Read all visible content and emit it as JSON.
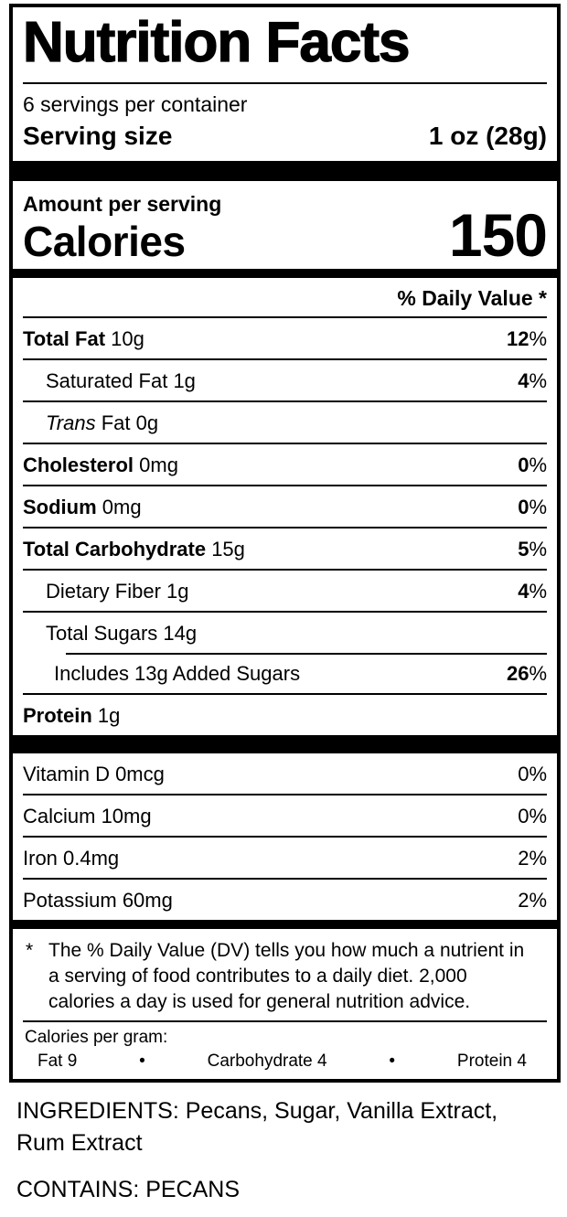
{
  "label": {
    "title": "Nutrition Facts",
    "servings_per_container": "6 servings per container",
    "serving_size": {
      "label": "Serving size",
      "value": "1 oz (28g)"
    },
    "amount_per_serving": "Amount per serving",
    "calories": {
      "label": "Calories",
      "value": "150"
    },
    "daily_value_header": "% Daily Value *",
    "nutrients": [
      {
        "name": "Total Fat",
        "amount": "10g",
        "dv": "12",
        "percent": "%"
      },
      {
        "name": "Saturated Fat",
        "amount": "1g",
        "dv": "4",
        "percent": "%"
      },
      {
        "name_italic": "Trans",
        "name": "Fat",
        "amount": "0g"
      },
      {
        "name": "Cholesterol",
        "amount": "0mg",
        "dv": "0",
        "percent": "%"
      },
      {
        "name": "Sodium",
        "amount": "0mg",
        "dv": "0",
        "percent": "%"
      },
      {
        "name": "Total Carbohydrate",
        "amount": "15g",
        "dv": "5",
        "percent": "%"
      },
      {
        "name": "Dietary Fiber",
        "amount": "1g",
        "dv": "4",
        "percent": "%"
      },
      {
        "name": "Total Sugars",
        "amount": "14g"
      },
      {
        "name": "Includes 13g Added Sugars",
        "dv": "26",
        "percent": "%"
      },
      {
        "name": "Protein",
        "amount": "1g"
      }
    ],
    "vitamins": [
      {
        "text": "Vitamin D 0mcg",
        "dv": "0",
        "percent": "%"
      },
      {
        "text": "Calcium 10mg",
        "dv": "0",
        "percent": "%"
      },
      {
        "text": "Iron 0.4mg",
        "dv": "2",
        "percent": "%"
      },
      {
        "text": "Potassium 60mg",
        "dv": "2",
        "percent": "%"
      }
    ],
    "footnote": {
      "marker": "*",
      "text": "The % Daily Value (DV) tells you how much a nutrient in a serving of food contributes to a daily diet. 2,000 calories a day is used for general nutrition advice."
    },
    "calories_per_gram": {
      "heading": "Calories per gram:",
      "fat": "Fat 9",
      "bullet": "•",
      "carbohydrate": "Carbohydrate 4",
      "protein": "Protein 4"
    }
  },
  "ingredients_text": "INGREDIENTS: Pecans, Sugar, Vanilla Extract, Rum Extract",
  "contains_text": "CONTAINS: PECANS"
}
